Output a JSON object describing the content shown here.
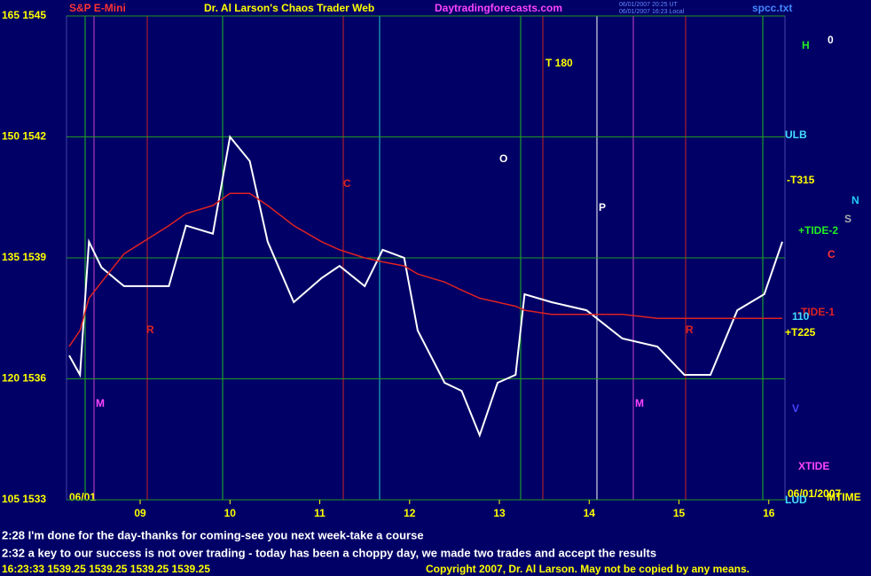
{
  "chart_data": {
    "type": "line",
    "title": "Dr. Al Larson's Chaos Trader Web",
    "symbol": "S&P E-Mini",
    "site": "Daytradingforecasts.com",
    "file": "spcc.txt",
    "stamps": [
      "06/01/2007 20:25 UT",
      "06/01/2007 16:23 Local"
    ],
    "date_left": "06/01",
    "x": [
      8.21,
      8.33,
      8.43,
      8.57,
      8.82,
      9.32,
      9.51,
      9.81,
      10.0,
      10.22,
      10.42,
      10.71,
      11.02,
      11.22,
      11.5,
      11.7,
      11.94,
      12.09,
      12.39,
      12.58,
      12.78,
      12.98,
      13.18,
      13.28,
      13.58,
      13.97,
      14.37,
      14.76,
      15.06,
      15.35,
      15.65,
      15.95,
      16.15
    ],
    "series": [
      {
        "color": "#ffffff",
        "values": [
          1536.58,
          1536.1,
          1539.4,
          1538.76,
          1538.3,
          1538.3,
          1539.8,
          1539.6,
          1542.0,
          1541.4,
          1539.4,
          1537.9,
          1538.5,
          1538.8,
          1538.3,
          1539.2,
          1539.0,
          1537.2,
          1535.9,
          1535.7,
          1534.6,
          1535.9,
          1536.1,
          1538.1,
          1537.9,
          1537.7,
          1537.0,
          1536.8,
          1536.1,
          1536.1,
          1537.7,
          1538.1,
          1539.4
        ]
      },
      {
        "color": "#dd2222",
        "values": [
          1536.8,
          1537.2,
          1538.0,
          1538.4,
          1539.1,
          1539.8,
          1540.1,
          1540.3,
          1540.6,
          1540.6,
          1540.3,
          1539.8,
          1539.4,
          1539.2,
          1539.0,
          1538.9,
          1538.8,
          1538.6,
          1538.4,
          1538.2,
          1538.0,
          1537.9,
          1537.8,
          1537.7,
          1537.6,
          1537.6,
          1537.6,
          1537.5,
          1537.5,
          1537.5,
          1537.5,
          1537.5,
          1537.5
        ]
      }
    ],
    "xlim": [
      8.18,
      16.18
    ],
    "ylim": [
      1533,
      1545
    ],
    "xticks": [
      {
        "value": 9,
        "label": "09"
      },
      10,
      11,
      12,
      13,
      14,
      15,
      16
    ],
    "yticks": [
      {
        "value": 1533,
        "label": "105 1533"
      },
      {
        "value": 1536,
        "label": "120 1536"
      },
      {
        "value": 1539,
        "label": "135 1539"
      },
      {
        "value": 1542,
        "label": "150 1542"
      },
      {
        "value": 1545,
        "label": "165 1545"
      }
    ],
    "grid": true,
    "annotations": [
      "H",
      "0",
      "ULB",
      "-T315",
      "N",
      "S",
      "+TIDE-2",
      "C",
      "-TIDE-1",
      "110",
      "+T225",
      "XTIDE",
      "V",
      "06/01/2007",
      "MTIME",
      "LUD",
      "T 180",
      "O",
      "P",
      "C",
      "M",
      "M",
      "R",
      "R"
    ],
    "messages": [
      "2:28 I'm done for the day-thanks for coming-see you next week-take a course",
      "2:32 a key to our success is not over trading - today has been a choppy day, we made two trades and accept the results"
    ],
    "quote": "16:23:33  1539.25  1539.25  1539.25  1539.25",
    "copyright": "Copyright 2007, Dr. Al Larson. May not be copied by any means."
  }
}
